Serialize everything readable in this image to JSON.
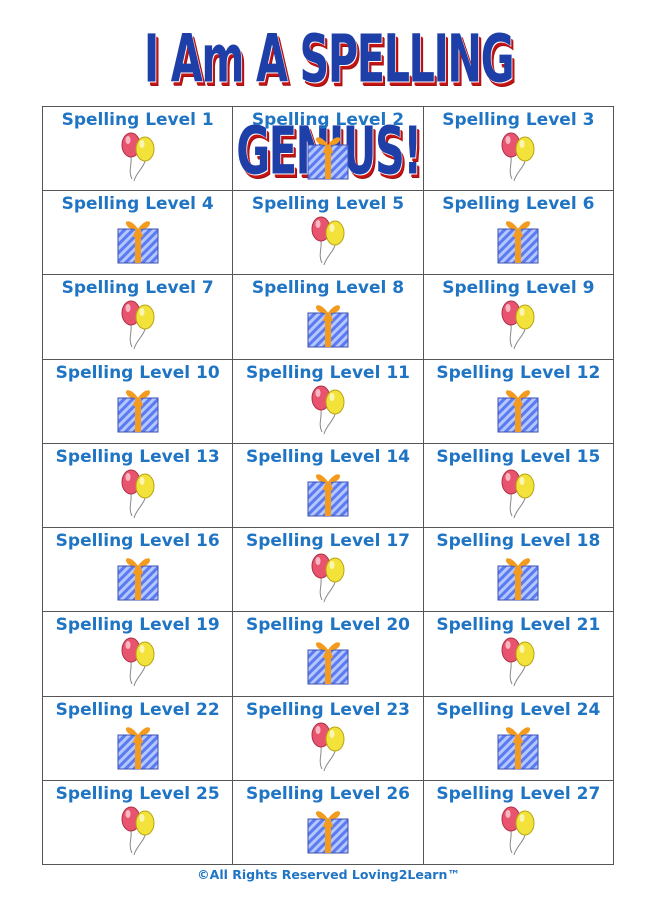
{
  "title": "I Am A SPELLING GENIUS!",
  "footer": "©All Rights Reserved Loving2Learn™",
  "colors": {
    "title": "#1f3fa8",
    "title_shadow": "#c41414",
    "label": "#1f74c4",
    "gift_body": "#5a7cf0",
    "gift_ribbon": "#f29b1f",
    "balloon_pink": "#e8546e",
    "balloon_yellow": "#f2e23a"
  },
  "levels": [
    {
      "label": "Spelling Level 1",
      "icon": "balloons"
    },
    {
      "label": "Spelling Level 2",
      "icon": "gift"
    },
    {
      "label": "Spelling Level 3",
      "icon": "balloons"
    },
    {
      "label": "Spelling Level 4",
      "icon": "gift"
    },
    {
      "label": "Spelling Level 5",
      "icon": "balloons"
    },
    {
      "label": "Spelling Level 6",
      "icon": "gift"
    },
    {
      "label": "Spelling Level 7",
      "icon": "balloons"
    },
    {
      "label": "Spelling Level 8",
      "icon": "gift"
    },
    {
      "label": "Spelling Level 9",
      "icon": "balloons"
    },
    {
      "label": "Spelling Level 10",
      "icon": "gift"
    },
    {
      "label": "Spelling Level 11",
      "icon": "balloons"
    },
    {
      "label": "Spelling Level 12",
      "icon": "gift"
    },
    {
      "label": "Spelling Level 13",
      "icon": "balloons"
    },
    {
      "label": "Spelling Level 14",
      "icon": "gift"
    },
    {
      "label": "Spelling Level 15",
      "icon": "balloons"
    },
    {
      "label": "Spelling Level 16",
      "icon": "gift"
    },
    {
      "label": "Spelling Level 17",
      "icon": "balloons"
    },
    {
      "label": "Spelling Level 18",
      "icon": "gift"
    },
    {
      "label": "Spelling Level 19",
      "icon": "balloons"
    },
    {
      "label": "Spelling Level 20",
      "icon": "gift"
    },
    {
      "label": "Spelling Level 21",
      "icon": "balloons"
    },
    {
      "label": "Spelling Level 22",
      "icon": "gift"
    },
    {
      "label": "Spelling Level 23",
      "icon": "balloons"
    },
    {
      "label": "Spelling Level 24",
      "icon": "gift"
    },
    {
      "label": "Spelling Level 25",
      "icon": "balloons"
    },
    {
      "label": "Spelling Level 26",
      "icon": "gift"
    },
    {
      "label": "Spelling Level 27",
      "icon": "balloons"
    }
  ]
}
